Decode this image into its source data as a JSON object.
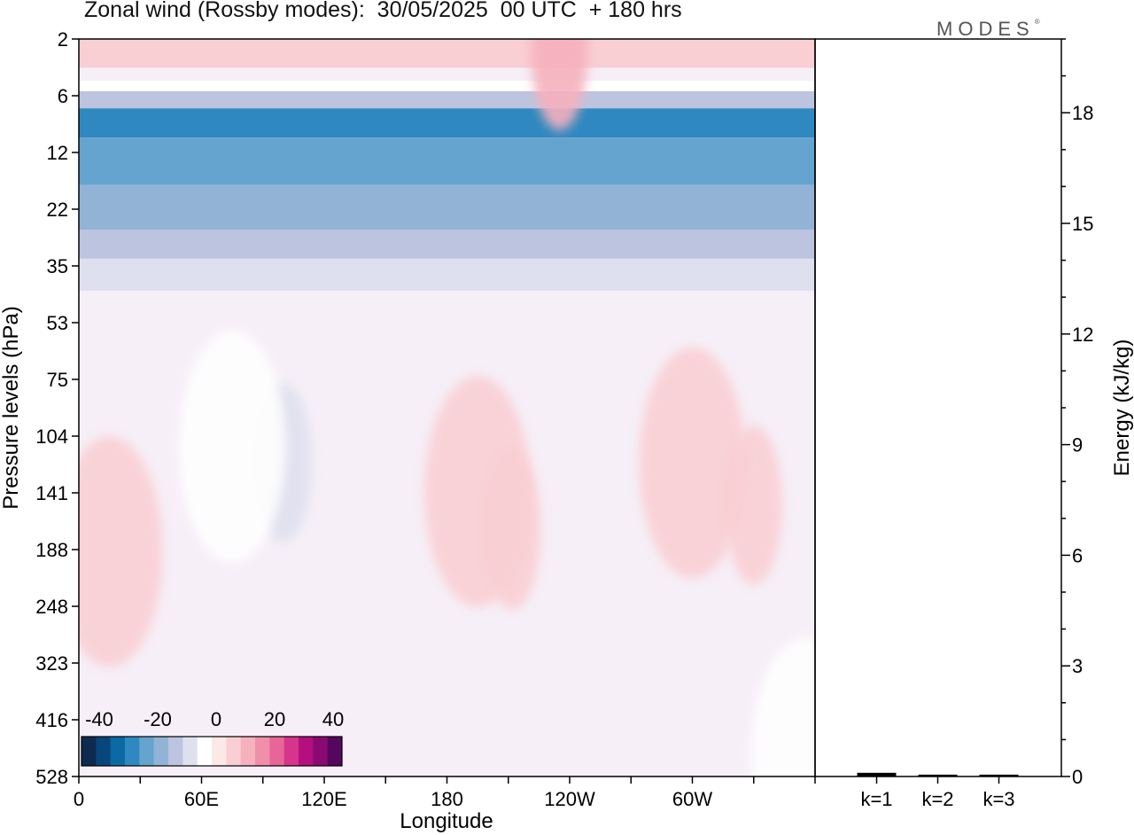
{
  "title": "Zonal wind (Rossby modes):  30/05/2025  00 UTC  + 180 hrs",
  "logo": "MODES",
  "logo_mark": "®",
  "chart_data": [
    {
      "type": "heatmap",
      "xlabel": "Longitude",
      "ylabel": "Pressure levels (hPa)",
      "x_ticks": [
        "0",
        "60E",
        "120E",
        "180",
        "120W",
        "60W"
      ],
      "y_ticks": [
        2,
        6,
        12,
        22,
        35,
        53,
        75,
        104,
        141,
        188,
        248,
        323,
        416,
        528
      ],
      "y_scale": "log-pressure, inverted",
      "xlim": [
        "0",
        "360"
      ],
      "ylim": [
        528,
        2
      ],
      "colorbar": {
        "ticks": [
          "-40",
          "-20",
          "0",
          "20",
          "40"
        ],
        "colors": [
          "#0d2b4e",
          "#08457a",
          "#0b6aa6",
          "#2f88bf",
          "#64a4cf",
          "#93b3d6",
          "#bcc4e0",
          "#dfe0ef",
          "#ffffff",
          "#fde8e8",
          "#f9cfd3",
          "#f6b1bd",
          "#f08fa9",
          "#e86598",
          "#d7348c",
          "#b40f7f",
          "#8a0a72",
          "#55065e"
        ]
      },
      "bands": [
        {
          "p_top": 2,
          "p_bottom": 3.5,
          "value": 5
        },
        {
          "p_top": 3.5,
          "p_bottom": 4.5,
          "value": 0
        },
        {
          "p_top": 4.5,
          "p_bottom": 5.5,
          "value": -5
        },
        {
          "p_top": 5.5,
          "p_bottom": 7,
          "value": -15
        },
        {
          "p_top": 7,
          "p_bottom": 10,
          "value": -28
        },
        {
          "p_top": 10,
          "p_bottom": 17,
          "value": -22
        },
        {
          "p_top": 17,
          "p_bottom": 26,
          "value": -18
        },
        {
          "p_top": 26,
          "p_bottom": 33,
          "value": -12
        },
        {
          "p_top": 33,
          "p_bottom": 42,
          "value": -7
        },
        {
          "p_top": 42,
          "p_bottom": 528,
          "value": 0
        }
      ],
      "anomalies": [
        {
          "lon": 100,
          "p": 120,
          "value": -8
        },
        {
          "lon": 75,
          "p": 110,
          "value": -4
        },
        {
          "lon": 212,
          "p": 170,
          "value": 9
        },
        {
          "lon": 195,
          "p": 140,
          "value": 5
        },
        {
          "lon": 330,
          "p": 150,
          "value": 9
        },
        {
          "lon": 300,
          "p": 120,
          "value": 5
        },
        {
          "lon": 15,
          "p": 190,
          "value": 5
        },
        {
          "lon": 355,
          "p": 480,
          "value": -4
        },
        {
          "lon": 235,
          "p": 2.5,
          "value": 12
        }
      ]
    },
    {
      "type": "bar",
      "ylabel": "Energy (kJ/kg)",
      "categories": [
        "k=1",
        "k=2",
        "k=3"
      ],
      "values": [
        0.1,
        0.05,
        0.05
      ],
      "ylim": [
        0,
        20
      ],
      "y_ticks": [
        0,
        3,
        6,
        9,
        12,
        15,
        18
      ]
    }
  ]
}
